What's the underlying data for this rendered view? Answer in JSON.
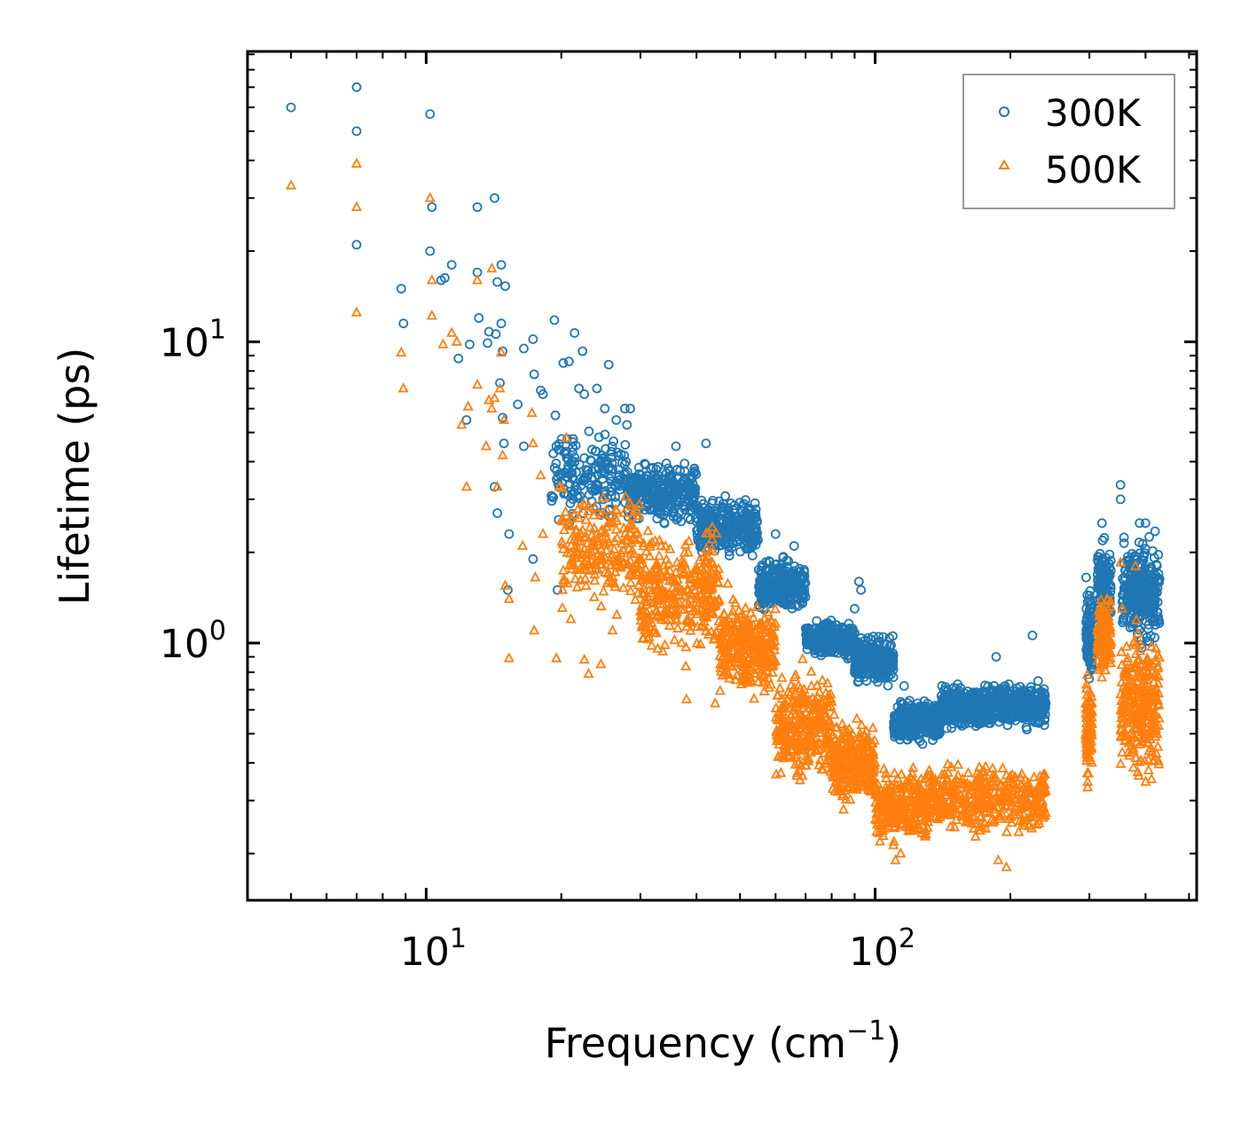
{
  "chart_data": {
    "type": "scatter",
    "title": "",
    "xlabel": "Frequency (cm",
    "xlabel_sup": "−1",
    "xlabel_tail": ")",
    "ylabel": "Lifetime (ps)",
    "xscale": "log",
    "yscale": "log",
    "xlim": [
      4.0,
      520
    ],
    "ylim": [
      0.14,
      92
    ],
    "x_ticks": [
      {
        "value": 10,
        "base": "10",
        "exp": "1"
      },
      {
        "value": 100,
        "base": "10",
        "exp": "2"
      }
    ],
    "y_ticks": [
      {
        "value": 1,
        "base": "10",
        "exp": "0"
      },
      {
        "value": 10,
        "base": "10",
        "exp": "1"
      }
    ],
    "legend_position": "top-right",
    "series": [
      {
        "name": "300K",
        "marker": "circle",
        "color": "#1f77b4",
        "points": [
          [
            5.0,
            60
          ],
          [
            7.0,
            70
          ],
          [
            7.0,
            50
          ],
          [
            7.0,
            21
          ],
          [
            8.8,
            15
          ],
          [
            8.9,
            11.5
          ],
          [
            10.2,
            57
          ],
          [
            10.3,
            28
          ],
          [
            10.2,
            20
          ],
          [
            10.8,
            16
          ],
          [
            11.0,
            16.3
          ],
          [
            11.4,
            18
          ],
          [
            11.8,
            8.8
          ],
          [
            12.3,
            5.5
          ],
          [
            12.5,
            9.8
          ],
          [
            13.0,
            28
          ],
          [
            13.0,
            17
          ],
          [
            13.1,
            12
          ],
          [
            13.7,
            9.9
          ],
          [
            13.8,
            10.8
          ],
          [
            14.2,
            30
          ],
          [
            14.3,
            10.6
          ],
          [
            14.4,
            15.8
          ],
          [
            14.7,
            18
          ],
          [
            14.7,
            11.5
          ],
          [
            14.8,
            9.3
          ],
          [
            15.0,
            15.3
          ],
          [
            14.6,
            7.3
          ],
          [
            14.8,
            5.6
          ],
          [
            14.9,
            4.6
          ],
          [
            14.2,
            3.3
          ],
          [
            14.4,
            2.7
          ],
          [
            15.3,
            2.3
          ],
          [
            15.2,
            1.5
          ],
          [
            16.0,
            6.2
          ],
          [
            16.5,
            4.5
          ],
          [
            16.5,
            9.5
          ],
          [
            17.3,
            10.2
          ],
          [
            17.4,
            7.8
          ],
          [
            17.3,
            1.9
          ],
          [
            18.0,
            6.9
          ],
          [
            18.2,
            6.7
          ],
          [
            19.3,
            11.8
          ],
          [
            19.5,
            4.5
          ],
          [
            19.4,
            5.7
          ],
          [
            19.6,
            1.5
          ],
          [
            20.2,
            8.5
          ],
          [
            20.8,
            8.6
          ],
          [
            21.4,
            10.7
          ],
          [
            21.9,
            7.0
          ],
          [
            22.3,
            9.3
          ],
          [
            22.5,
            6.7
          ],
          [
            24.0,
            7.0
          ],
          [
            25.0,
            6.0
          ],
          [
            25.5,
            8.4
          ],
          [
            26.5,
            5.5
          ],
          [
            27.7,
            6.0
          ],
          [
            28.0,
            5.3
          ],
          [
            28.5,
            6.0
          ],
          [
            36.0,
            4.5
          ],
          [
            42.0,
            4.6
          ],
          [
            60.0,
            2.3
          ],
          [
            66.0,
            2.1
          ],
          [
            90.0,
            1.3
          ],
          [
            92.0,
            1.6
          ],
          [
            93.0,
            1.5
          ],
          [
            116.0,
            0.72
          ],
          [
            186.0,
            0.9
          ],
          [
            224.0,
            1.06
          ],
          [
            295.0,
            1.65
          ],
          [
            320.0,
            2.5
          ],
          [
            352.0,
            3.35
          ],
          [
            352.0,
            3.0
          ],
          [
            388.0,
            2.5
          ],
          [
            400.0,
            2.5
          ],
          [
            420.0,
            2.35
          ]
        ],
        "bands": [
          {
            "x_start": 19.0,
            "x_end": 28.0,
            "y_low": 2.3,
            "y_high": 5.5,
            "count": 180
          },
          {
            "x_start": 28.0,
            "x_end": 40.0,
            "y_low": 2.4,
            "y_high": 4.2,
            "count": 300
          },
          {
            "x_start": 40.0,
            "x_end": 55.0,
            "y_low": 1.8,
            "y_high": 3.2,
            "count": 300
          },
          {
            "x_start": 55.0,
            "x_end": 70.0,
            "y_low": 1.2,
            "y_high": 2.0,
            "count": 260
          },
          {
            "x_start": 70.0,
            "x_end": 90.0,
            "y_low": 0.85,
            "y_high": 1.25,
            "count": 260
          },
          {
            "x_start": 90.0,
            "x_end": 110.0,
            "y_low": 0.7,
            "y_high": 1.1,
            "count": 260
          },
          {
            "x_start": 110.0,
            "x_end": 140.0,
            "y_low": 0.45,
            "y_high": 0.68,
            "count": 280
          },
          {
            "x_start": 140.0,
            "x_end": 180.0,
            "y_low": 0.5,
            "y_high": 0.75,
            "count": 300
          },
          {
            "x_start": 180.0,
            "x_end": 240.0,
            "y_low": 0.5,
            "y_high": 0.78,
            "count": 320
          },
          {
            "x_start": 295.0,
            "x_end": 305.0,
            "y_low": 0.7,
            "y_high": 1.7,
            "count": 90
          },
          {
            "x_start": 313.0,
            "x_end": 335.0,
            "y_low": 0.95,
            "y_high": 2.4,
            "count": 140
          },
          {
            "x_start": 355.0,
            "x_end": 430.0,
            "y_low": 0.9,
            "y_high": 2.4,
            "count": 280
          }
        ]
      },
      {
        "name": "500K",
        "marker": "triangle",
        "color": "#ff7f0e",
        "points": [
          [
            5.0,
            33
          ],
          [
            7.0,
            39
          ],
          [
            7.0,
            28
          ],
          [
            7.0,
            12.5
          ],
          [
            8.8,
            9.2
          ],
          [
            8.9,
            7.0
          ],
          [
            10.2,
            30
          ],
          [
            10.3,
            16
          ],
          [
            10.3,
            12.2
          ],
          [
            10.9,
            9.8
          ],
          [
            11.4,
            10.7
          ],
          [
            11.7,
            10.0
          ],
          [
            12.0,
            5.3
          ],
          [
            12.3,
            3.3
          ],
          [
            12.4,
            6.1
          ],
          [
            13.0,
            16
          ],
          [
            13.0,
            7.2
          ],
          [
            13.6,
            4.5
          ],
          [
            13.8,
            6.4
          ],
          [
            14.0,
            6.0
          ],
          [
            14.0,
            17.5
          ],
          [
            14.2,
            6.5
          ],
          [
            14.7,
            9.2
          ],
          [
            14.6,
            7.0
          ],
          [
            14.8,
            4.2
          ],
          [
            14.9,
            5.5
          ],
          [
            14.4,
            3.3
          ],
          [
            15.3,
            1.4
          ],
          [
            15.3,
            0.89
          ],
          [
            15.0,
            1.55
          ],
          [
            16.4,
            2.1
          ],
          [
            17.2,
            5.8
          ],
          [
            17.3,
            4.6
          ],
          [
            17.4,
            1.1
          ],
          [
            17.5,
            1.65
          ],
          [
            18.0,
            3.6
          ],
          [
            18.2,
            2.3
          ],
          [
            19.5,
            0.89
          ],
          [
            19.8,
            3.3
          ],
          [
            20.5,
            4.8
          ],
          [
            21.0,
            2.2
          ],
          [
            21.0,
            1.2
          ],
          [
            22.5,
            0.88
          ],
          [
            23.0,
            0.79
          ],
          [
            24.5,
            0.85
          ],
          [
            26.0,
            1.1
          ],
          [
            38.0,
            0.65
          ],
          [
            44.0,
            0.63
          ],
          [
            68.0,
            0.35
          ],
          [
            83.0,
            0.33
          ],
          [
            85.0,
            0.28
          ],
          [
            111.0,
            0.19
          ],
          [
            114.0,
            0.2
          ],
          [
            138.0,
            0.26
          ],
          [
            188.0,
            0.19
          ],
          [
            196.0,
            0.18
          ],
          [
            298.0,
            0.6
          ],
          [
            352.0,
            1.85
          ],
          [
            355.0,
            1.3
          ],
          [
            380.0,
            1.8
          ]
        ],
        "bands": [
          {
            "x_start": 20.0,
            "x_end": 30.0,
            "y_low": 1.2,
            "y_high": 3.5,
            "count": 220
          },
          {
            "x_start": 30.0,
            "x_end": 45.0,
            "y_low": 0.8,
            "y_high": 2.6,
            "count": 320
          },
          {
            "x_start": 45.0,
            "x_end": 60.0,
            "y_low": 0.6,
            "y_high": 1.6,
            "count": 300
          },
          {
            "x_start": 60.0,
            "x_end": 80.0,
            "y_low": 0.32,
            "y_high": 0.9,
            "count": 300
          },
          {
            "x_start": 80.0,
            "x_end": 100.0,
            "y_low": 0.28,
            "y_high": 0.6,
            "count": 260
          },
          {
            "x_start": 100.0,
            "x_end": 130.0,
            "y_low": 0.2,
            "y_high": 0.4,
            "count": 280
          },
          {
            "x_start": 130.0,
            "x_end": 240.0,
            "y_low": 0.22,
            "y_high": 0.42,
            "count": 420
          },
          {
            "x_start": 294.0,
            "x_end": 304.0,
            "y_low": 0.3,
            "y_high": 0.95,
            "count": 90
          },
          {
            "x_start": 312.0,
            "x_end": 335.0,
            "y_low": 0.75,
            "y_high": 1.5,
            "count": 130
          },
          {
            "x_start": 352.0,
            "x_end": 430.0,
            "y_low": 0.3,
            "y_high": 1.3,
            "count": 280
          }
        ]
      }
    ]
  }
}
